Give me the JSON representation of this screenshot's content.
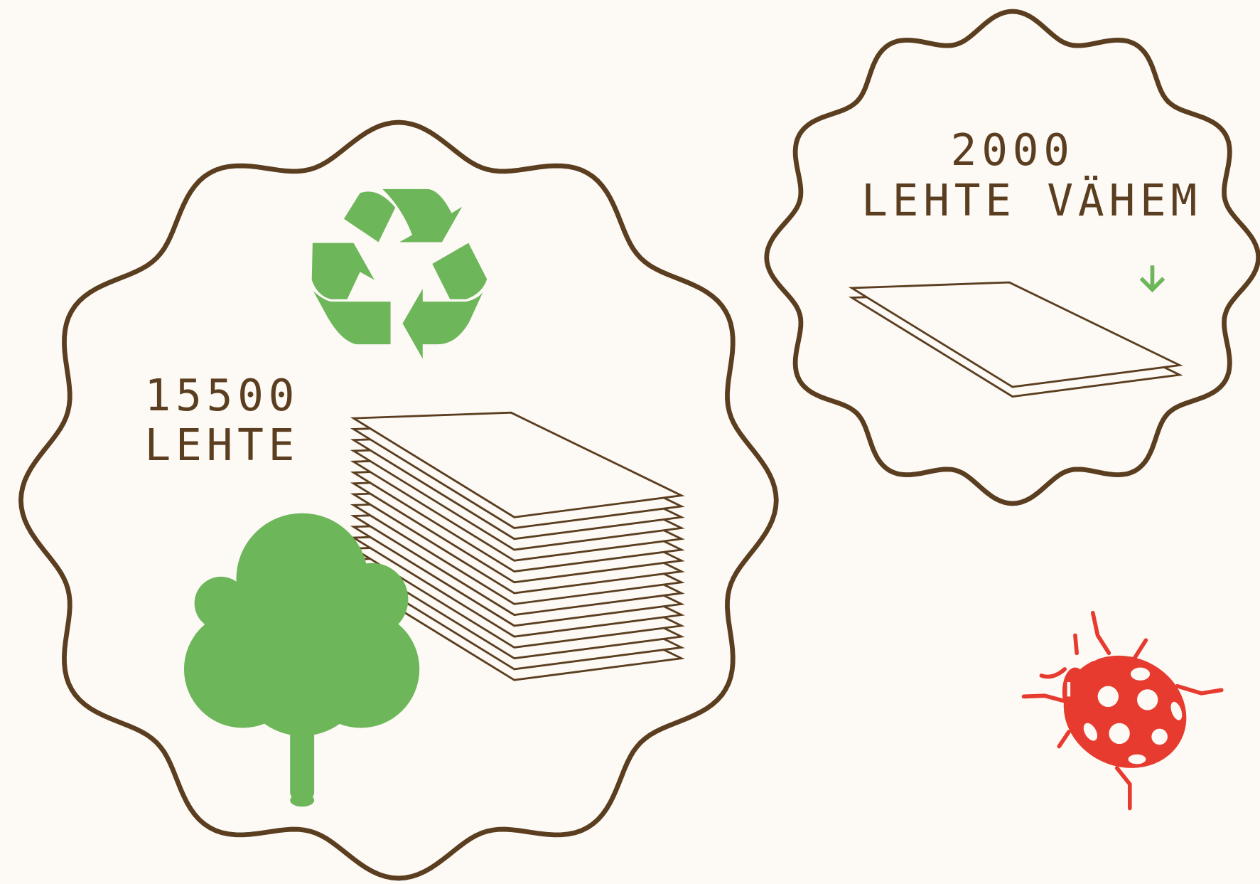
{
  "left_badge": {
    "count": "15500",
    "label": "LEHTE"
  },
  "right_badge": {
    "count": "2000",
    "label": "LEHTE VÄHEM"
  }
}
